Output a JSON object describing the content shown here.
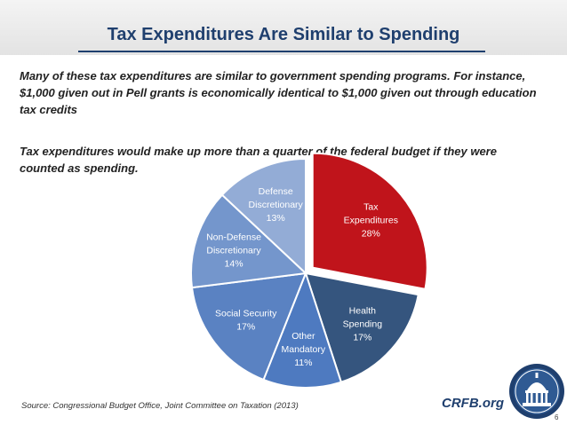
{
  "title": "Tax Expenditures Are Similar to Spending",
  "paragraphs": {
    "p1": "Many of these tax expenditures are similar to government spending programs. For instance, $1,000 given out in Pell grants is economically identical to $1,000 given out through education tax credits",
    "p2": "Tax expenditures would make up more than a quarter of the federal budget if they were counted as spending."
  },
  "source": "Source: Congressional Budget Office, Joint Committee on Taxation (2013)",
  "brand": "CRFB.org",
  "page_number": "6",
  "colors": {
    "title": "#1f3f6e",
    "tax_expenditures": "#c0141b",
    "health_spending": "#35557e",
    "other_mandatory": "#4e7ac0",
    "social_security": "#5a82c2",
    "non_defense": "#7496cc",
    "defense": "#93acd6"
  },
  "chart_data": {
    "type": "pie",
    "title": "",
    "slices": [
      {
        "label_lines": [
          "Tax",
          "Expenditures"
        ],
        "pct_label": "28%",
        "value": 28,
        "color": "#c0141b",
        "exploded": true
      },
      {
        "label_lines": [
          "Health",
          "Spending"
        ],
        "pct_label": "17%",
        "value": 17,
        "color": "#35557e",
        "exploded": false
      },
      {
        "label_lines": [
          "Other",
          "Mandatory"
        ],
        "pct_label": "11%",
        "value": 11,
        "color": "#4e7ac0",
        "exploded": false
      },
      {
        "label_lines": [
          "Social Security"
        ],
        "pct_label": "17%",
        "value": 17,
        "color": "#5a82c2",
        "exploded": false
      },
      {
        "label_lines": [
          "Non-Defense",
          "Discretionary"
        ],
        "pct_label": "14%",
        "value": 14,
        "color": "#7496cc",
        "exploded": false
      },
      {
        "label_lines": [
          "Defense",
          "Discretionary"
        ],
        "pct_label": "13%",
        "value": 13,
        "color": "#93acd6",
        "exploded": false
      }
    ]
  }
}
